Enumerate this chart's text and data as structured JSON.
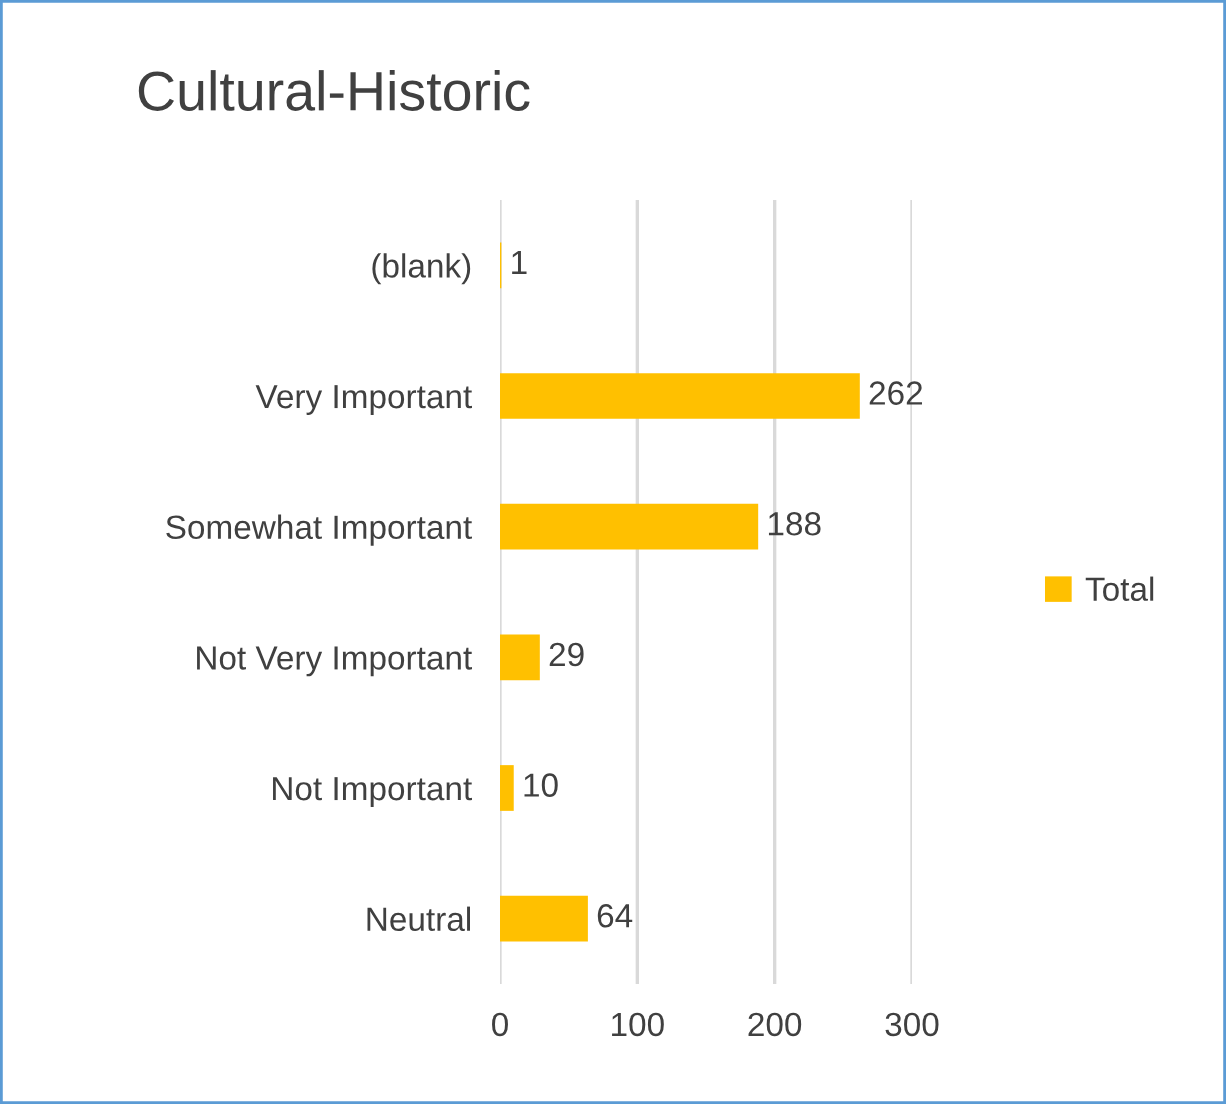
{
  "chart_data": {
    "type": "bar",
    "orientation": "horizontal",
    "title": "Cultural-Historic",
    "categories": [
      "(blank)",
      "Very Important",
      "Somewhat Important",
      "Not Very Important",
      "Not Important",
      "Neutral"
    ],
    "series": [
      {
        "name": "Total",
        "color": "#ffc000",
        "values": [
          1,
          262,
          188,
          29,
          10,
          64
        ]
      }
    ],
    "xlim": [
      0,
      300
    ],
    "xticks": [
      0,
      100,
      200,
      300
    ],
    "grid": "x",
    "legend": "right",
    "data_labels": true
  }
}
